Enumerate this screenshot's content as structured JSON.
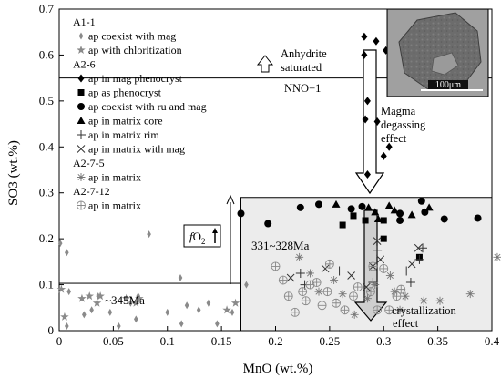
{
  "chart_data": {
    "type": "scatter",
    "xlabel": "MnO (wt.%)",
    "ylabel": "SO3 (wt.%)",
    "xlim": [
      0,
      0.4
    ],
    "ylim": [
      0,
      0.7
    ],
    "xticks": [
      "0",
      "0.05",
      "0.1",
      "0.15",
      "0.2",
      "0.25",
      "0.3",
      "0.35",
      "0.4"
    ],
    "yticks": [
      "0",
      "0.1",
      "0.2",
      "0.3",
      "0.4",
      "0.5",
      "0.6",
      "0.7"
    ],
    "legend": {
      "placement": "top-left",
      "groups": [
        {
          "title": "A1-1",
          "entries": [
            {
              "label": "ap coexist with mag",
              "marker": "diamond-small-gray"
            },
            {
              "label": "ap with chloritization",
              "marker": "star-gray"
            }
          ]
        },
        {
          "title": "A2-6",
          "entries": [
            {
              "label": "ap in mag phenocryst",
              "marker": "diamond-black"
            },
            {
              "label": "ap as phenocryst",
              "marker": "square-black"
            },
            {
              "label": "ap coexist with ru and mag",
              "marker": "circle-black"
            },
            {
              "label": "ap in matrix core",
              "marker": "triangle-black"
            },
            {
              "label": "ap in matrix rim",
              "marker": "plus"
            },
            {
              "label": "ap in matrix with mag",
              "marker": "x"
            }
          ]
        },
        {
          "title": "A2-7-5",
          "entries": [
            {
              "label": "ap in matrix",
              "marker": "asterisk"
            }
          ]
        },
        {
          "title": "A2-7-12",
          "entries": [
            {
              "label": "ap in matrix",
              "marker": "circled-plus"
            }
          ]
        }
      ]
    },
    "annotations": {
      "anhydrite": [
        "Anhydrite",
        "saturated"
      ],
      "nno": "NNO+1",
      "degassing": [
        "Magma",
        "degassing",
        "effect"
      ],
      "fo2_f": "f",
      "fo2_rest": "O",
      "fo2_sub": "2",
      "age_young": "331~328Ma",
      "age_old": "~345Ma",
      "crystallization": [
        "crystallization",
        "effect"
      ],
      "scale_bar": "100μm"
    },
    "reference_lines": {
      "nno_y": 0.55
    },
    "regions": [
      {
        "name": "~345Ma",
        "x": [
          0,
          0.195
        ],
        "y": [
          0,
          0.103
        ]
      },
      {
        "name": "331~328Ma",
        "x": [
          0.168,
          0.4
        ],
        "y": [
          0,
          0.29
        ]
      }
    ],
    "series": [
      {
        "name": "ap coexist with mag",
        "sample": "A1-1",
        "marker": "diamond-small-gray",
        "points": [
          [
            0.001,
            0.19
          ],
          [
            0.007,
            0.17
          ],
          [
            0.009,
            0.085
          ],
          [
            0.007,
            0.01
          ],
          [
            0.023,
            0.035
          ],
          [
            0.03,
            0.045
          ],
          [
            0.036,
            0.075
          ],
          [
            0.047,
            0.04
          ],
          [
            0.055,
            0.01
          ],
          [
            0.066,
            0.06
          ],
          [
            0.071,
            0.025
          ],
          [
            0.073,
            0.075
          ],
          [
            0.083,
            0.21
          ],
          [
            0.1,
            0.04
          ],
          [
            0.112,
            0.115
          ],
          [
            0.113,
            0.015
          ],
          [
            0.118,
            0.055
          ],
          [
            0.129,
            0.045
          ],
          [
            0.138,
            0.06
          ],
          [
            0.146,
            0.015
          ],
          [
            0.16,
            0.04
          ],
          [
            0.173,
            0.1
          ]
        ]
      },
      {
        "name": "ap with chloritization",
        "sample": "A1-1",
        "marker": "star-gray",
        "points": [
          [
            0.002,
            0.09
          ],
          [
            0.005,
            0.03
          ],
          [
            0.021,
            0.07
          ],
          [
            0.028,
            0.075
          ],
          [
            0.035,
            0.06
          ],
          [
            0.038,
            0.075
          ],
          [
            0.062,
            0.07
          ],
          [
            0.071,
            0.06
          ],
          [
            0.074,
            0.07
          ],
          [
            0.155,
            0.045
          ],
          [
            0.163,
            0.06
          ]
        ]
      },
      {
        "name": "ap in mag phenocryst",
        "sample": "A2-6",
        "marker": "diamond-black",
        "points": [
          [
            0.282,
            0.64
          ],
          [
            0.282,
            0.6
          ],
          [
            0.293,
            0.63
          ],
          [
            0.302,
            0.61
          ],
          [
            0.285,
            0.5
          ],
          [
            0.283,
            0.46
          ],
          [
            0.294,
            0.455
          ],
          [
            0.305,
            0.4
          ],
          [
            0.3,
            0.38
          ],
          [
            0.285,
            0.34
          ]
        ]
      },
      {
        "name": "ap as phenocryst",
        "sample": "A2-6",
        "marker": "square-black",
        "points": [
          [
            0.262,
            0.23
          ],
          [
            0.272,
            0.25
          ],
          [
            0.3,
            0.24
          ],
          [
            0.3,
            0.2
          ],
          [
            0.333,
            0.16
          ],
          [
            0.283,
            0.24
          ]
        ]
      },
      {
        "name": "ap coexist with ru and mag",
        "sample": "A2-6",
        "marker": "circle-black",
        "points": [
          [
            0.168,
            0.255
          ],
          [
            0.193,
            0.233
          ],
          [
            0.223,
            0.268
          ],
          [
            0.24,
            0.275
          ],
          [
            0.27,
            0.265
          ],
          [
            0.28,
            0.27
          ],
          [
            0.315,
            0.24
          ],
          [
            0.315,
            0.255
          ],
          [
            0.335,
            0.282
          ],
          [
            0.338,
            0.258
          ],
          [
            0.356,
            0.243
          ],
          [
            0.387,
            0.245
          ]
        ]
      },
      {
        "name": "ap in matrix core",
        "sample": "A2-6",
        "marker": "triangle-black",
        "points": [
          [
            0.256,
            0.275
          ],
          [
            0.286,
            0.268
          ],
          [
            0.292,
            0.258
          ],
          [
            0.295,
            0.243
          ],
          [
            0.305,
            0.272
          ],
          [
            0.31,
            0.262
          ],
          [
            0.326,
            0.252
          ],
          [
            0.342,
            0.268
          ]
        ]
      },
      {
        "name": "ap in matrix rim",
        "sample": "A2-6",
        "marker": "plus",
        "points": [
          [
            0.223,
            0.125
          ],
          [
            0.227,
            0.1
          ],
          [
            0.259,
            0.13
          ],
          [
            0.29,
            0.105
          ],
          [
            0.294,
            0.175
          ],
          [
            0.321,
            0.13
          ],
          [
            0.325,
            0.105
          ],
          [
            0.333,
            0.155
          ],
          [
            0.336,
            0.18
          ]
        ]
      },
      {
        "name": "ap in matrix with mag",
        "sample": "A2-6",
        "marker": "x",
        "points": [
          [
            0.214,
            0.115
          ],
          [
            0.246,
            0.135
          ],
          [
            0.27,
            0.12
          ],
          [
            0.284,
            0.095
          ],
          [
            0.29,
            0.14
          ],
          [
            0.294,
            0.195
          ],
          [
            0.297,
            0.155
          ],
          [
            0.326,
            0.145
          ],
          [
            0.332,
            0.18
          ]
        ]
      },
      {
        "name": "ap in matrix",
        "sample": "A2-7-5",
        "marker": "asterisk",
        "points": [
          [
            0.222,
            0.16
          ],
          [
            0.232,
            0.125
          ],
          [
            0.24,
            0.085
          ],
          [
            0.254,
            0.11
          ],
          [
            0.262,
            0.08
          ],
          [
            0.273,
            0.035
          ],
          [
            0.285,
            0.07
          ],
          [
            0.292,
            0.1
          ],
          [
            0.306,
            0.12
          ],
          [
            0.31,
            0.085
          ],
          [
            0.315,
            0.045
          ],
          [
            0.32,
            0.075
          ],
          [
            0.337,
            0.065
          ],
          [
            0.352,
            0.065
          ],
          [
            0.38,
            0.08
          ],
          [
            0.405,
            0.16
          ]
        ]
      },
      {
        "name": "ap in matrix",
        "sample": "A2-7-12",
        "marker": "circled-plus",
        "points": [
          [
            0.2,
            0.14
          ],
          [
            0.207,
            0.11
          ],
          [
            0.212,
            0.075
          ],
          [
            0.218,
            0.04
          ],
          [
            0.225,
            0.085
          ],
          [
            0.228,
            0.065
          ],
          [
            0.232,
            0.1
          ],
          [
            0.238,
            0.105
          ],
          [
            0.243,
            0.055
          ],
          [
            0.248,
            0.085
          ],
          [
            0.25,
            0.145
          ],
          [
            0.256,
            0.06
          ],
          [
            0.264,
            0.045
          ],
          [
            0.272,
            0.075
          ],
          [
            0.276,
            0.095
          ],
          [
            0.288,
            0.085
          ],
          [
            0.29,
            0.14
          ],
          [
            0.294,
            0.045
          ],
          [
            0.3,
            0.135
          ],
          [
            0.305,
            0.045
          ],
          [
            0.312,
            0.075
          ],
          [
            0.316,
            0.09
          ]
        ]
      }
    ]
  }
}
